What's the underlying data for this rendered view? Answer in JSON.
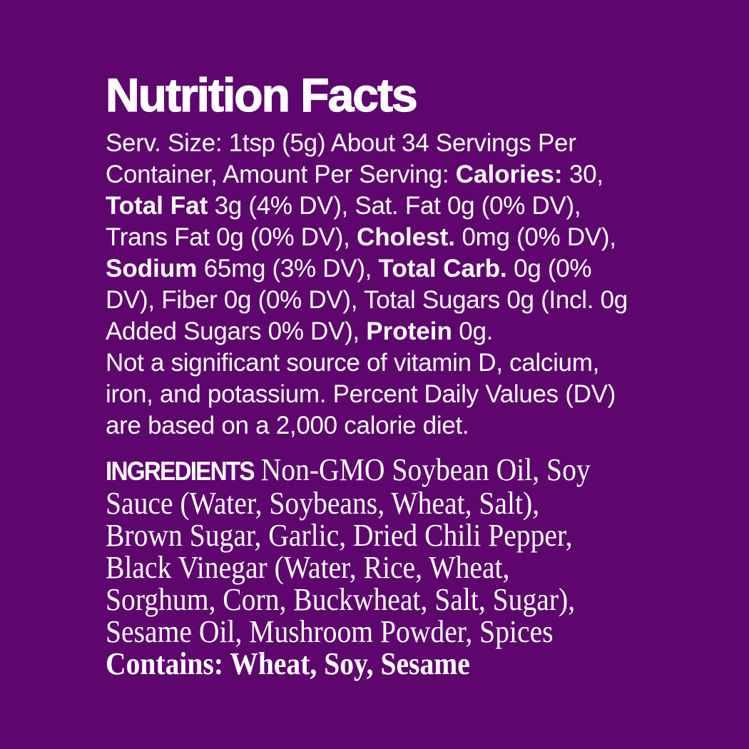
{
  "colors": {
    "background": "#5E056E",
    "text": "#FFFFFF"
  },
  "title": "Nutrition Facts",
  "nutrition": {
    "serving_size": "1tsp (5g)",
    "servings_per_container": "About 34",
    "calories": "30",
    "lines": [
      {
        "segments": [
          {
            "style": "regular",
            "text": "Serv. Size: 1tsp (5g) About 34 Servings Per"
          }
        ]
      },
      {
        "segments": [
          {
            "style": "regular",
            "text": "Container, Amount Per Serving: "
          },
          {
            "style": "bold",
            "text": "Calories:"
          },
          {
            "style": "regular",
            "text": " 30,"
          }
        ]
      },
      {
        "segments": [
          {
            "style": "bold",
            "text": "Total Fat"
          },
          {
            "style": "regular",
            "text": " 3g (4% DV), Sat. Fat 0g (0% DV),"
          }
        ]
      },
      {
        "segments": [
          {
            "style": "regular",
            "text": "Trans Fat 0g (0% DV), "
          },
          {
            "style": "bold",
            "text": "Cholest."
          },
          {
            "style": "regular",
            "text": " 0mg (0% DV),"
          }
        ]
      },
      {
        "segments": [
          {
            "style": "bold",
            "text": "Sodium"
          },
          {
            "style": "regular",
            "text": " 65mg (3% DV), "
          },
          {
            "style": "bold",
            "text": "Total Carb."
          },
          {
            "style": "regular",
            "text": " 0g (0%"
          }
        ]
      },
      {
        "segments": [
          {
            "style": "regular",
            "text": "DV), Fiber 0g (0% DV), Total Sugars 0g (Incl. 0g"
          }
        ]
      },
      {
        "segments": [
          {
            "style": "regular",
            "text": "Added Sugars 0% DV), "
          },
          {
            "style": "bold",
            "text": "Protein"
          },
          {
            "style": "regular",
            "text": " 0g."
          }
        ]
      },
      {
        "segments": [
          {
            "style": "regular",
            "text": "Not a significant source of vitamin D, calcium,"
          }
        ]
      },
      {
        "segments": [
          {
            "style": "regular",
            "text": "iron, and potassium. Percent Daily Values (DV)"
          }
        ]
      },
      {
        "segments": [
          {
            "style": "regular",
            "text": "are based on a 2,000 calorie diet."
          }
        ]
      }
    ]
  },
  "ingredients": {
    "heading": "INGREDIENTS",
    "contains_statement": "Contains: Wheat, Soy, Sesame",
    "lines": [
      {
        "segments": [
          {
            "style": "heading",
            "text": "INGREDIENTS"
          },
          {
            "style": "regular",
            "text": " Non-GMO Soybean Oil, Soy"
          }
        ]
      },
      {
        "segments": [
          {
            "style": "regular",
            "text": "Sauce (Water, Soybeans, Wheat, Salt),"
          }
        ]
      },
      {
        "segments": [
          {
            "style": "regular",
            "text": "Brown Sugar, Garlic, Dried Chili Pepper,"
          }
        ]
      },
      {
        "segments": [
          {
            "style": "regular",
            "text": "Black Vinegar (Water, Rice, Wheat,"
          }
        ]
      },
      {
        "segments": [
          {
            "style": "regular",
            "text": "Sorghum, Corn, Buckwheat, Salt, Sugar),"
          }
        ]
      },
      {
        "segments": [
          {
            "style": "regular",
            "text": "Sesame Oil, Mushroom Powder, Spices"
          }
        ]
      },
      {
        "segments": [
          {
            "style": "bold",
            "text": "Contains: Wheat, Soy, Sesame"
          }
        ]
      }
    ]
  }
}
